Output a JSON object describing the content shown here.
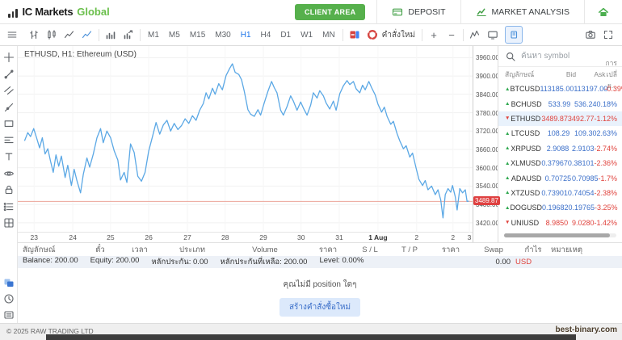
{
  "header": {
    "logo_text": "IC Markets",
    "logo_suffix": "Global",
    "client_area_label": "CLIENT AREA",
    "deposit_label": "DEPOSIT",
    "market_analysis_label": "MARKET ANALYSIS"
  },
  "toolbar": {
    "timeframes": [
      "M1",
      "M5",
      "M15",
      "M30",
      "H1",
      "H4",
      "D1",
      "W1",
      "MN"
    ],
    "active_timeframe": "H1",
    "new_order_label": "คำสั่งใหม่",
    "zoom_in_label": "+",
    "zoom_out_label": "−"
  },
  "sidebar": {
    "tools": [
      "crosshair",
      "trend-line",
      "channels",
      "ray",
      "shapes",
      "fib-retracement",
      "text",
      "eye",
      "lock",
      "object-tree",
      "grid"
    ],
    "bottom_tabs": [
      "trade",
      "history",
      "news"
    ]
  },
  "chart_data": {
    "type": "line",
    "symbol": "ETHUSD",
    "timeframe": "H1",
    "title": "ETHUSD, H1: Ethereum (USD)",
    "line_color": "#5ba8e5",
    "current_price": 3489.87,
    "current_price_label": "3489.87",
    "current_price_line_color": "#eba49a",
    "ylim": [
      3388,
      3998
    ],
    "grid": true,
    "y_ticks": [
      {
        "label": "3960.00",
        "value": 3960
      },
      {
        "label": "3900.00",
        "value": 3900
      },
      {
        "label": "3840.00",
        "value": 3840
      },
      {
        "label": "3780.00",
        "value": 3780
      },
      {
        "label": "3720.00",
        "value": 3720
      },
      {
        "label": "3660.00",
        "value": 3660
      },
      {
        "label": "3600.00",
        "value": 3600
      },
      {
        "label": "3540.00",
        "value": 3540
      },
      {
        "label": "3480.00",
        "value": 3480
      },
      {
        "label": "3420.00",
        "value": 3420
      }
    ],
    "x_ticks": [
      {
        "label": "23",
        "pos": 0.036
      },
      {
        "label": "24",
        "pos": 0.121
      },
      {
        "label": "25",
        "pos": 0.204
      },
      {
        "label": "26",
        "pos": 0.288
      },
      {
        "label": "27",
        "pos": 0.373
      },
      {
        "label": "28",
        "pos": 0.456
      },
      {
        "label": "29",
        "pos": 0.54
      },
      {
        "label": "30",
        "pos": 0.623
      },
      {
        "label": "31",
        "pos": 0.707
      },
      {
        "label": "1 Aug",
        "pos": 0.792,
        "bold": true
      },
      {
        "label": "2",
        "pos": 0.877
      },
      {
        "label": "2",
        "pos": 0.957
      },
      {
        "label": "3",
        "pos": 0.993
      }
    ],
    "series": [
      [
        0.015,
        3688
      ],
      [
        0.022,
        3715
      ],
      [
        0.028,
        3702
      ],
      [
        0.035,
        3728
      ],
      [
        0.042,
        3695
      ],
      [
        0.048,
        3665
      ],
      [
        0.054,
        3698
      ],
      [
        0.06,
        3645
      ],
      [
        0.066,
        3662
      ],
      [
        0.072,
        3622
      ],
      [
        0.078,
        3585
      ],
      [
        0.084,
        3642
      ],
      [
        0.09,
        3605
      ],
      [
        0.096,
        3638
      ],
      [
        0.104,
        3568
      ],
      [
        0.11,
        3608
      ],
      [
        0.118,
        3542
      ],
      [
        0.124,
        3595
      ],
      [
        0.13,
        3558
      ],
      [
        0.138,
        3518
      ],
      [
        0.144,
        3578
      ],
      [
        0.152,
        3632
      ],
      [
        0.158,
        3602
      ],
      [
        0.166,
        3645
      ],
      [
        0.174,
        3698
      ],
      [
        0.182,
        3728
      ],
      [
        0.188,
        3682
      ],
      [
        0.196,
        3720
      ],
      [
        0.204,
        3698
      ],
      [
        0.212,
        3655
      ],
      [
        0.22,
        3625
      ],
      [
        0.226,
        3560
      ],
      [
        0.234,
        3585
      ],
      [
        0.24,
        3552
      ],
      [
        0.248,
        3678
      ],
      [
        0.256,
        3650
      ],
      [
        0.264,
        3572
      ],
      [
        0.272,
        3556
      ],
      [
        0.28,
        3585
      ],
      [
        0.288,
        3655
      ],
      [
        0.296,
        3700
      ],
      [
        0.304,
        3748
      ],
      [
        0.312,
        3710
      ],
      [
        0.32,
        3740
      ],
      [
        0.328,
        3755
      ],
      [
        0.336,
        3720
      ],
      [
        0.344,
        3745
      ],
      [
        0.352,
        3725
      ],
      [
        0.36,
        3738
      ],
      [
        0.368,
        3760
      ],
      [
        0.376,
        3745
      ],
      [
        0.384,
        3770
      ],
      [
        0.392,
        3755
      ],
      [
        0.4,
        3788
      ],
      [
        0.408,
        3810
      ],
      [
        0.414,
        3845
      ],
      [
        0.42,
        3825
      ],
      [
        0.428,
        3860
      ],
      [
        0.434,
        3840
      ],
      [
        0.442,
        3875
      ],
      [
        0.45,
        3855
      ],
      [
        0.458,
        3902
      ],
      [
        0.466,
        3925
      ],
      [
        0.472,
        3940
      ],
      [
        0.478,
        3912
      ],
      [
        0.486,
        3905
      ],
      [
        0.492,
        3888
      ],
      [
        0.498,
        3850
      ],
      [
        0.506,
        3790
      ],
      [
        0.512,
        3775
      ],
      [
        0.52,
        3768
      ],
      [
        0.528,
        3790
      ],
      [
        0.534,
        3772
      ],
      [
        0.542,
        3812
      ],
      [
        0.55,
        3850
      ],
      [
        0.558,
        3882
      ],
      [
        0.564,
        3862
      ],
      [
        0.57,
        3845
      ],
      [
        0.578,
        3788
      ],
      [
        0.584,
        3772
      ],
      [
        0.592,
        3800
      ],
      [
        0.6,
        3835
      ],
      [
        0.606,
        3818
      ],
      [
        0.614,
        3788
      ],
      [
        0.622,
        3815
      ],
      [
        0.628,
        3795
      ],
      [
        0.636,
        3772
      ],
      [
        0.644,
        3805
      ],
      [
        0.65,
        3845
      ],
      [
        0.658,
        3828
      ],
      [
        0.664,
        3852
      ],
      [
        0.672,
        3835
      ],
      [
        0.678,
        3812
      ],
      [
        0.686,
        3792
      ],
      [
        0.694,
        3818
      ],
      [
        0.7,
        3788
      ],
      [
        0.708,
        3842
      ],
      [
        0.716,
        3868
      ],
      [
        0.724,
        3885
      ],
      [
        0.73,
        3872
      ],
      [
        0.738,
        3882
      ],
      [
        0.744,
        3858
      ],
      [
        0.752,
        3845
      ],
      [
        0.758,
        3870
      ],
      [
        0.764,
        3855
      ],
      [
        0.772,
        3882
      ],
      [
        0.778,
        3862
      ],
      [
        0.786,
        3838
      ],
      [
        0.792,
        3808
      ],
      [
        0.8,
        3782
      ],
      [
        0.806,
        3798
      ],
      [
        0.812,
        3768
      ],
      [
        0.82,
        3742
      ],
      [
        0.826,
        3752
      ],
      [
        0.834,
        3712
      ],
      [
        0.84,
        3688
      ],
      [
        0.848,
        3662
      ],
      [
        0.854,
        3672
      ],
      [
        0.862,
        3635
      ],
      [
        0.868,
        3648
      ],
      [
        0.876,
        3598
      ],
      [
        0.882,
        3562
      ],
      [
        0.89,
        3542
      ],
      [
        0.896,
        3558
      ],
      [
        0.902,
        3528
      ],
      [
        0.91,
        3540
      ],
      [
        0.918,
        3512
      ],
      [
        0.924,
        3528
      ],
      [
        0.93,
        3495
      ],
      [
        0.935,
        3436
      ],
      [
        0.94,
        3512
      ],
      [
        0.946,
        3532
      ],
      [
        0.952,
        3520
      ],
      [
        0.956,
        3542
      ],
      [
        0.962,
        3505
      ],
      [
        0.966,
        3462
      ],
      [
        0.972,
        3532
      ],
      [
        0.978,
        3518
      ],
      [
        0.984,
        3528
      ],
      [
        0.988,
        3490
      ],
      [
        0.992,
        3491
      ]
    ]
  },
  "watchlist": {
    "search_placeholder": "ค้นหา symbol",
    "headers": [
      "สัญลักษณ์",
      "Bid",
      "Ask",
      "การเปลี่ย..."
    ],
    "rows": [
      {
        "symbol": "BTCUSD",
        "dir": "up",
        "bid": "113185.00",
        "ask": "113197.00",
        "change": "-0.39%",
        "quote_color": "blue",
        "change_color": "red",
        "selected": false
      },
      {
        "symbol": "BCHUSD",
        "dir": "up",
        "bid": "533.99",
        "ask": "536.24",
        "change": "0.18%",
        "quote_color": "blue",
        "change_color": "blue",
        "selected": false
      },
      {
        "symbol": "ETHUSD",
        "dir": "down",
        "bid": "3489.87",
        "ask": "3492.77",
        "change": "-1.12%",
        "quote_color": "red",
        "change_color": "red",
        "selected": true
      },
      {
        "symbol": "LTCUSD",
        "dir": "up",
        "bid": "108.29",
        "ask": "109.30",
        "change": "2.63%",
        "quote_color": "blue",
        "change_color": "blue",
        "selected": false
      },
      {
        "symbol": "XRPUSD",
        "dir": "up",
        "bid": "2.9088",
        "ask": "2.9103",
        "change": "-2.74%",
        "quote_color": "blue",
        "change_color": "red",
        "selected": false
      },
      {
        "symbol": "XLMUSD",
        "dir": "up",
        "bid": "0.37967",
        "ask": "0.38101",
        "change": "-2.36%",
        "quote_color": "blue",
        "change_color": "red",
        "selected": false
      },
      {
        "symbol": "ADAUSD",
        "dir": "up",
        "bid": "0.70725",
        "ask": "0.70985",
        "change": "-1.7%",
        "quote_color": "blue",
        "change_color": "red",
        "selected": false
      },
      {
        "symbol": "XTZUSD",
        "dir": "up",
        "bid": "0.73901",
        "ask": "0.74054",
        "change": "-2.38%",
        "quote_color": "blue",
        "change_color": "red",
        "selected": false
      },
      {
        "symbol": "DOGUSD",
        "dir": "up",
        "bid": "0.19682",
        "ask": "0.19765",
        "change": "-3.25%",
        "quote_color": "blue",
        "change_color": "red",
        "selected": false
      },
      {
        "symbol": "UNIUSD",
        "dir": "down",
        "bid": "8.9850",
        "ask": "9.0280",
        "change": "-1.42%",
        "quote_color": "red",
        "change_color": "red",
        "selected": false
      }
    ]
  },
  "positions": {
    "headers": [
      "สัญลักษณ์",
      "ตั๋ว",
      "เวลา",
      "ประเภท",
      "Volume",
      "ราคา",
      "S / L",
      "T / P",
      "ราคา",
      "Swap",
      "กำไร",
      "หมายเหตุ"
    ],
    "balance_items": [
      "Balance: 200.00",
      "Equity: 200.00",
      "หลักประกัน: 0.00",
      "หลักประกันที่เหลือ: 200.00",
      "Level: 0.00%"
    ],
    "profit": "0.00",
    "currency": "USD",
    "empty_text": "คุณไม่มี position ใดๆ",
    "new_order_button": "สร้างคำสั่งซื้อใหม่"
  },
  "footer": {
    "copyright": "© 2025 RAW TRADING LTD",
    "watermark": "best-binary.com"
  },
  "colors": {
    "brand_green": "#56b04c",
    "accent_blue": "#1a73e8",
    "quote_blue": "#3b6fc9",
    "down_red": "#e0433d",
    "up_green": "#2fa84f",
    "line_blue": "#5ba8e5",
    "price_badge_red": "#df4040",
    "selected_row": "#e9f2fc"
  }
}
